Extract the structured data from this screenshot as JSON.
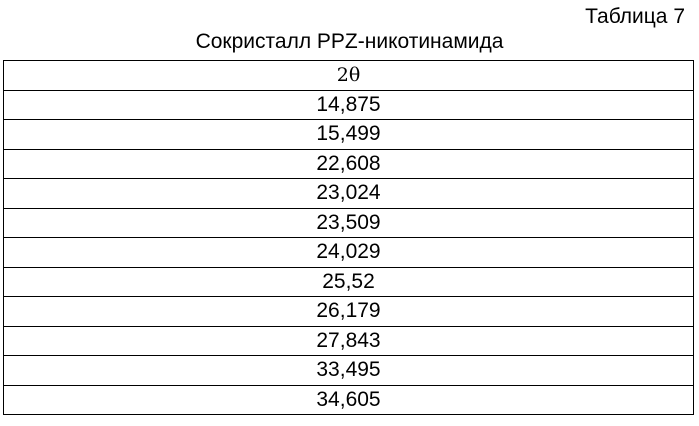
{
  "document": {
    "table_label": "Таблица 7",
    "caption": "Сокристалл PPZ-никотинамида",
    "column_header": "2θ",
    "rows": [
      "14,875",
      "15,499",
      "22,608",
      "23,024",
      "23,509",
      "24,029",
      "25,52",
      "26,179",
      "27,843",
      "33,495",
      "34,605"
    ]
  }
}
